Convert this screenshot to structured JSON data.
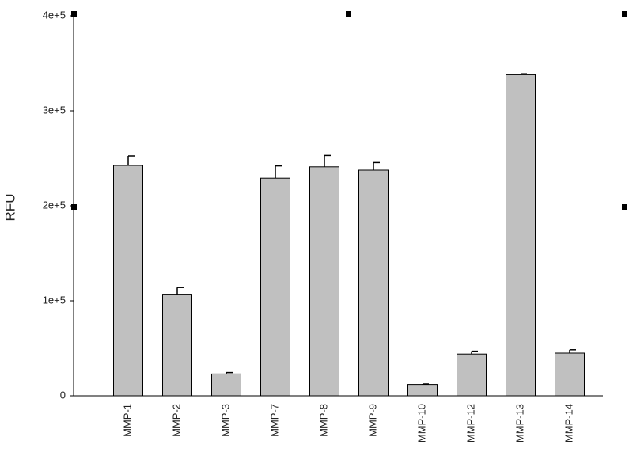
{
  "chart_data": {
    "type": "bar",
    "y_label": "RFU",
    "categories": [
      "MMP-1",
      "MMP-2",
      "MMP-3",
      "MMP-7",
      "MMP-8",
      "MMP-9",
      "MMP-10",
      "MMP-12",
      "MMP-13",
      "MMP-14"
    ],
    "values": [
      242500,
      107000,
      23000,
      229000,
      241000,
      237500,
      12000,
      44000,
      338000,
      45000
    ],
    "errors": [
      10000,
      7000,
      1500,
      13000,
      12000,
      8000,
      500,
      3000,
      1000,
      3500
    ],
    "color": "#c0c0c0",
    "ylim": [
      0,
      400000
    ],
    "yticks": [
      0,
      {
        "value": 100000,
        "label": "1e+5"
      },
      {
        "value": 200000,
        "label": "2e+5"
      },
      {
        "value": 300000,
        "label": "3e+5"
      },
      {
        "value": 400000,
        "label": "4e+5"
      }
    ],
    "grid": false
  }
}
